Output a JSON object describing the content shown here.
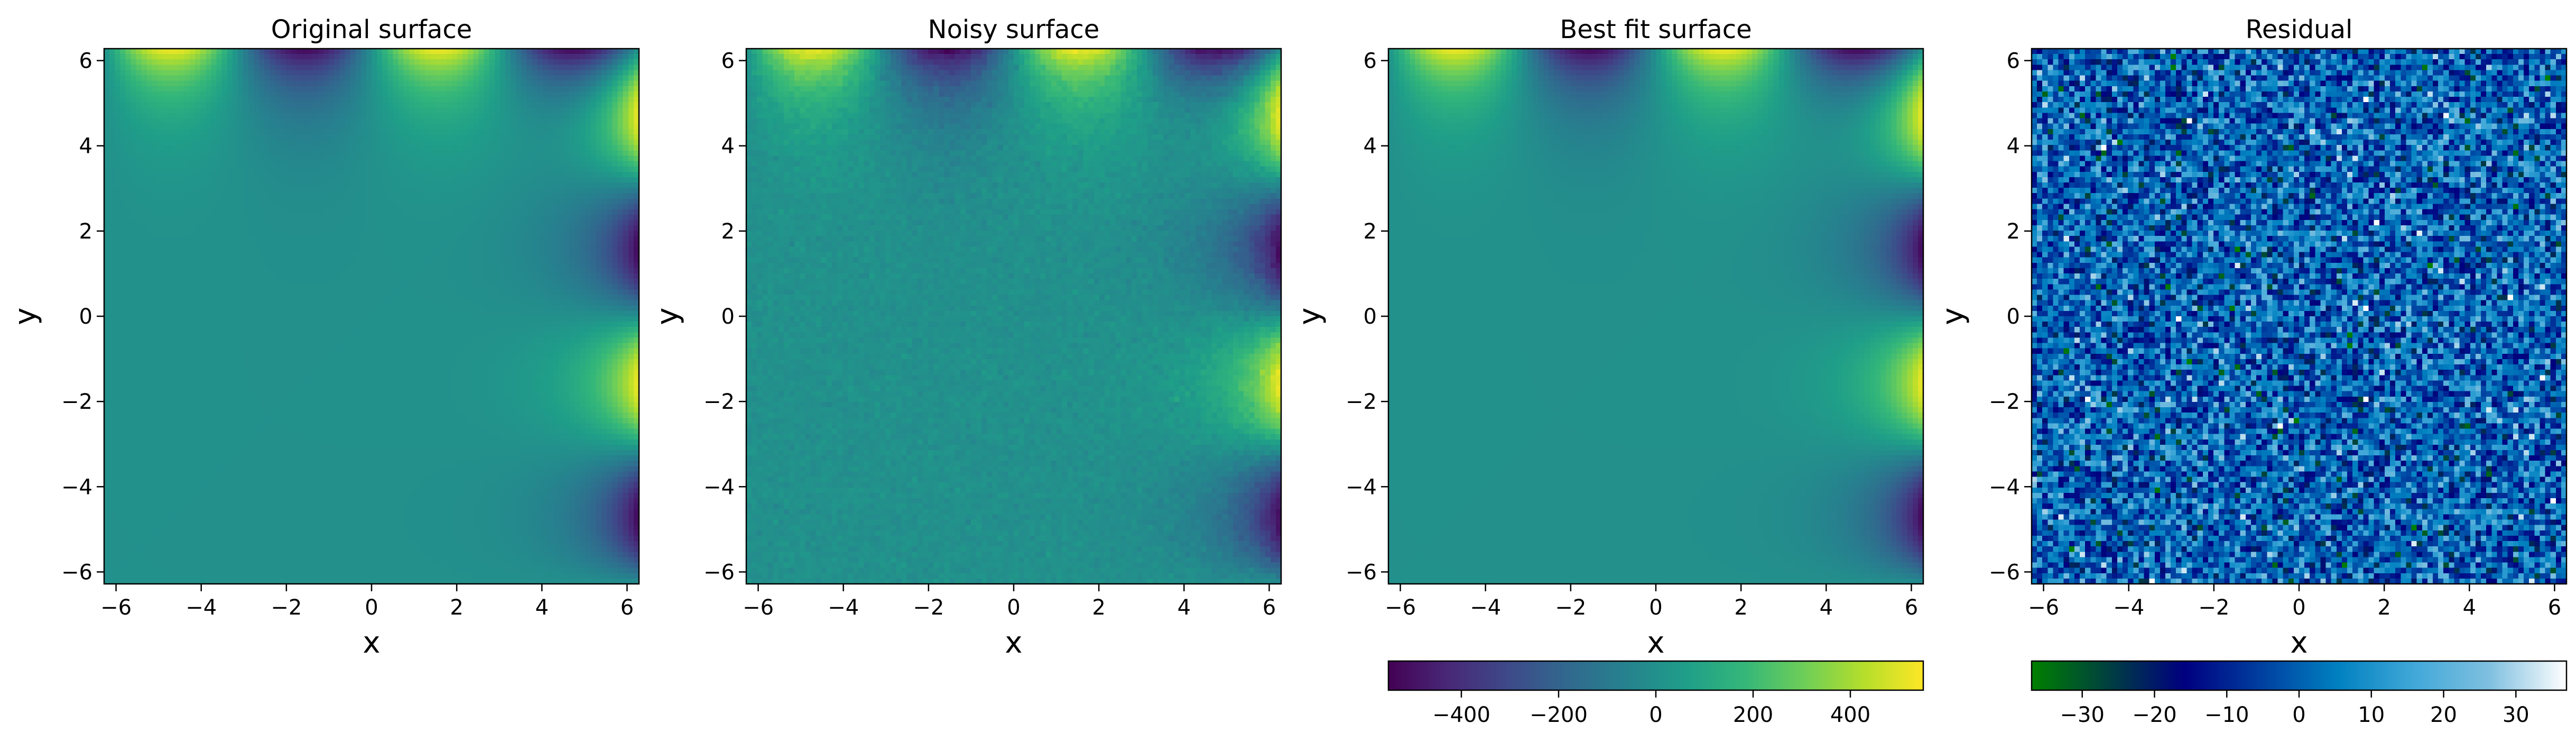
{
  "chart_data": [
    {
      "type": "heatmap",
      "title": "Original surface",
      "xlabel": "x",
      "ylabel": "y",
      "xlim": [
        -6.28,
        6.28
      ],
      "ylim": [
        -6.28,
        6.28
      ],
      "xticks": [
        -6,
        -4,
        -2,
        0,
        2,
        4,
        6
      ],
      "yticks": [
        -6,
        -4,
        -2,
        0,
        2,
        4,
        6
      ],
      "colormap": "viridis",
      "value_range": [
        -550,
        550
      ],
      "field": "amplitude_hotspots",
      "noise": 0
    },
    {
      "type": "heatmap",
      "title": "Noisy surface",
      "xlabel": "x",
      "ylabel": "y",
      "xlim": [
        -6.28,
        6.28
      ],
      "ylim": [
        -6.28,
        6.28
      ],
      "xticks": [
        -6,
        -4,
        -2,
        0,
        2,
        4,
        6
      ],
      "yticks": [
        -6,
        -4,
        -2,
        0,
        2,
        4,
        6
      ],
      "colormap": "viridis",
      "value_range": [
        -550,
        550
      ],
      "field": "amplitude_hotspots",
      "noise": 15
    },
    {
      "type": "heatmap",
      "title": "Best fit surface",
      "xlabel": "x",
      "ylabel": "y",
      "xlim": [
        -6.28,
        6.28
      ],
      "ylim": [
        -6.28,
        6.28
      ],
      "xticks": [
        -6,
        -4,
        -2,
        0,
        2,
        4,
        6
      ],
      "yticks": [
        -6,
        -4,
        -2,
        0,
        2,
        4,
        6
      ],
      "colormap": "viridis",
      "value_range": [
        -550,
        550
      ],
      "field": "amplitude_hotspots",
      "noise": 0,
      "colorbar": {
        "ticks": [
          -400,
          -200,
          0,
          200,
          400
        ],
        "tick_labels": [
          "−400",
          "−200",
          "0",
          "200",
          "400"
        ],
        "range": [
          -550,
          550
        ]
      }
    },
    {
      "type": "heatmap",
      "title": "Residual",
      "xlabel": "x",
      "ylabel": "y",
      "xlim": [
        -6.28,
        6.28
      ],
      "ylim": [
        -6.28,
        6.28
      ],
      "xticks": [
        -6,
        -4,
        -2,
        0,
        2,
        4,
        6
      ],
      "yticks": [
        -6,
        -4,
        -2,
        0,
        2,
        4,
        6
      ],
      "colormap": "ocean",
      "value_range": [
        -37,
        37
      ],
      "field": "random_residual",
      "noise": 12,
      "colorbar": {
        "ticks": [
          -30,
          -20,
          -10,
          0,
          10,
          20,
          30
        ],
        "tick_labels": [
          "−30",
          "−20",
          "−10",
          "0",
          "10",
          "20",
          "30"
        ],
        "range": [
          -37,
          37
        ]
      }
    }
  ],
  "colors": {
    "viridis": [
      "#440154",
      "#482878",
      "#3e4989",
      "#31688e",
      "#26828e",
      "#1f9e89",
      "#35b779",
      "#6ece58",
      "#b5de2b",
      "#fde725"
    ],
    "ocean": [
      "#008000",
      "#004040",
      "#000080",
      "#003fa0",
      "#0080c0",
      "#40a8d8",
      "#80c0e0",
      "#ffffff"
    ]
  },
  "tick_labels": [
    "−6",
    "−4",
    "−2",
    "0",
    "2",
    "4",
    "6"
  ]
}
